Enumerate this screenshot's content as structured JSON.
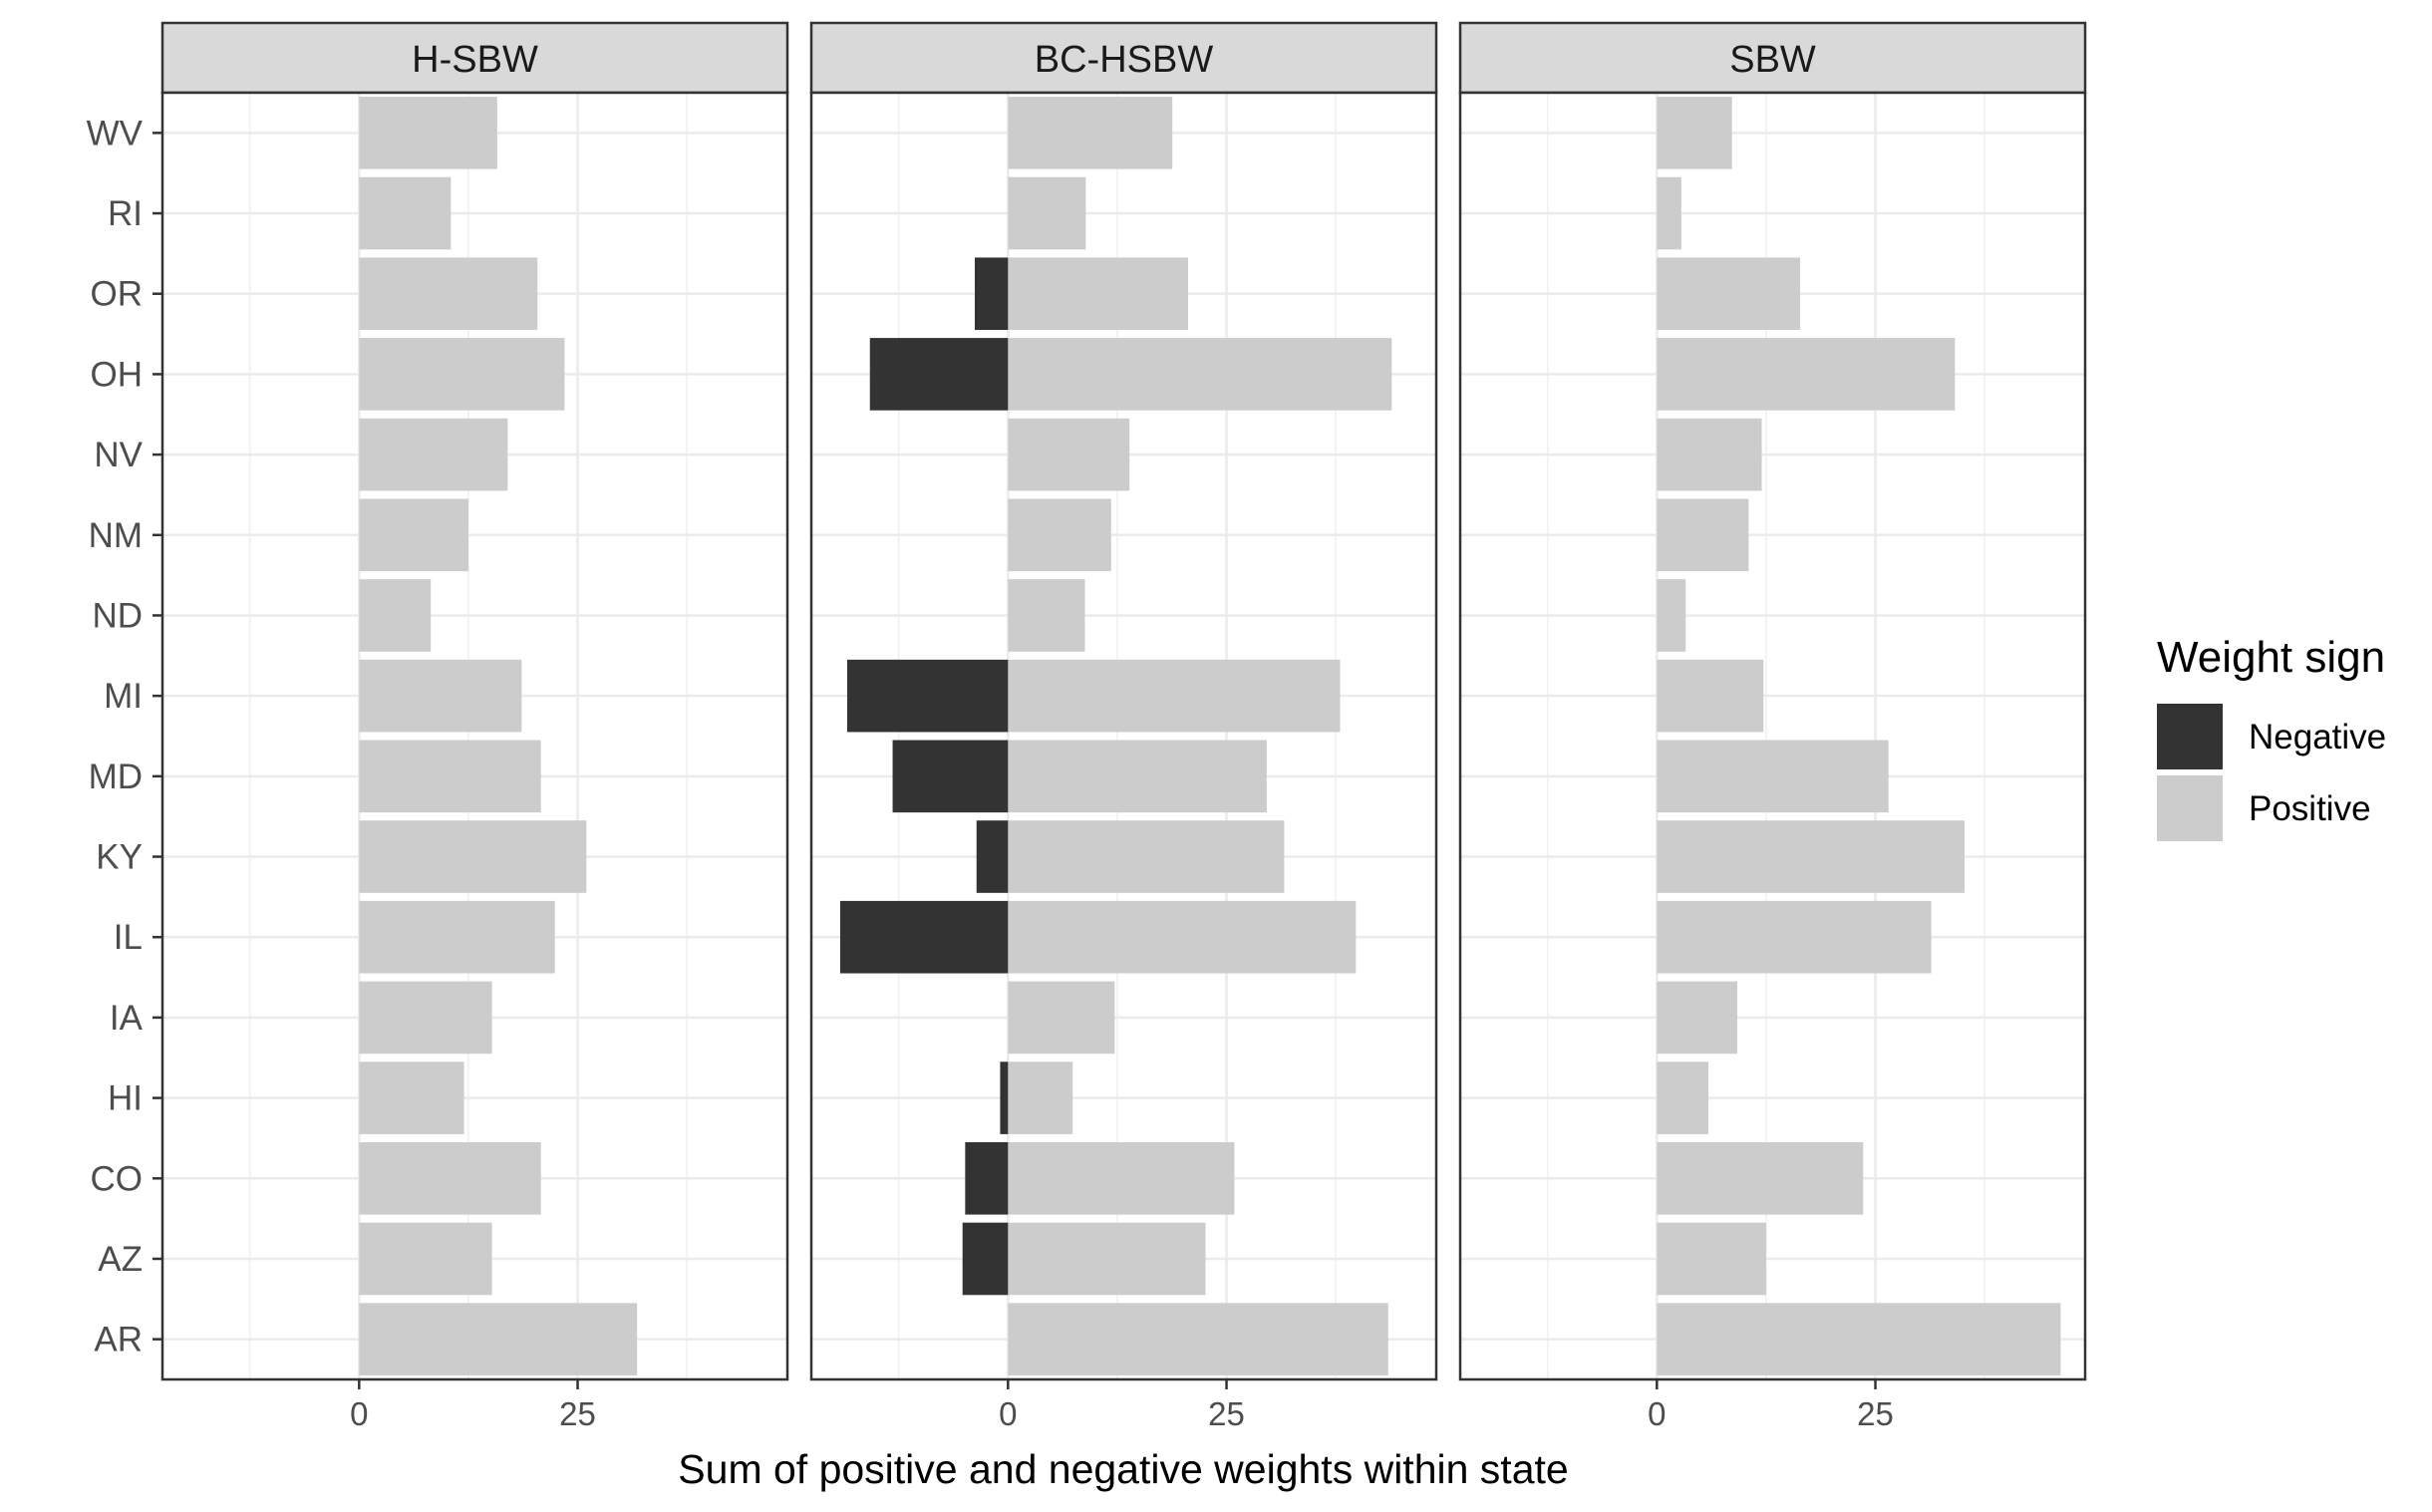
{
  "chart_data": {
    "type": "bar",
    "orientation": "horizontal",
    "stacked": "diverging",
    "facets": [
      "H-SBW",
      "BC-HSBW",
      "SBW"
    ],
    "categories": [
      "AR",
      "AZ",
      "CO",
      "HI",
      "IA",
      "IL",
      "KY",
      "MD",
      "MI",
      "ND",
      "NM",
      "NV",
      "OH",
      "OR",
      "RI",
      "WV"
    ],
    "xlabel": "Sum of positive and negative weights within state",
    "ylabel": "",
    "xlim": [
      -22.5,
      49
    ],
    "x_ticks": [
      0,
      25
    ],
    "x_tick_labels": [
      "0",
      "25"
    ],
    "grid": true,
    "legend": {
      "title": "Weight sign",
      "position": "right",
      "entries": [
        {
          "name": "Negative",
          "color": "#333333"
        },
        {
          "name": "Positive",
          "color": "#cccccc"
        }
      ]
    },
    "panels": [
      {
        "name": "H-SBW",
        "series": [
          {
            "name": "Negative",
            "values": [
              0,
              0,
              0,
              0,
              0,
              0,
              0,
              0,
              0,
              0,
              0,
              0,
              0,
              0,
              0,
              0
            ]
          },
          {
            "name": "Positive",
            "values": [
              31.8,
              15.2,
              20.8,
              12.0,
              15.2,
              22.4,
              26.0,
              20.8,
              18.6,
              8.2,
              12.5,
              17.0,
              23.5,
              20.4,
              10.5,
              15.8
            ]
          }
        ]
      },
      {
        "name": "BC-HSBW",
        "series": [
          {
            "name": "Negative",
            "values": [
              0,
              -5.2,
              -4.9,
              -0.9,
              0,
              -19.2,
              -3.6,
              -13.2,
              -18.4,
              0,
              0,
              0,
              -15.8,
              -3.8,
              0,
              0
            ]
          },
          {
            "name": "Positive",
            "values": [
              43.5,
              22.6,
              25.9,
              7.4,
              12.2,
              39.8,
              31.6,
              29.6,
              38.0,
              8.8,
              11.8,
              13.9,
              43.9,
              20.6,
              8.9,
              18.8
            ]
          }
        ]
      },
      {
        "name": "SBW",
        "series": [
          {
            "name": "Negative",
            "values": [
              0,
              0,
              0,
              0,
              0,
              0,
              0,
              0,
              0,
              0,
              0,
              0,
              0,
              0,
              0,
              0
            ]
          },
          {
            "name": "Positive",
            "values": [
              46.2,
              12.5,
              23.6,
              5.9,
              9.2,
              31.4,
              35.2,
              26.5,
              12.2,
              3.3,
              10.5,
              12.0,
              34.1,
              16.4,
              2.8,
              8.6
            ]
          }
        ]
      }
    ]
  }
}
